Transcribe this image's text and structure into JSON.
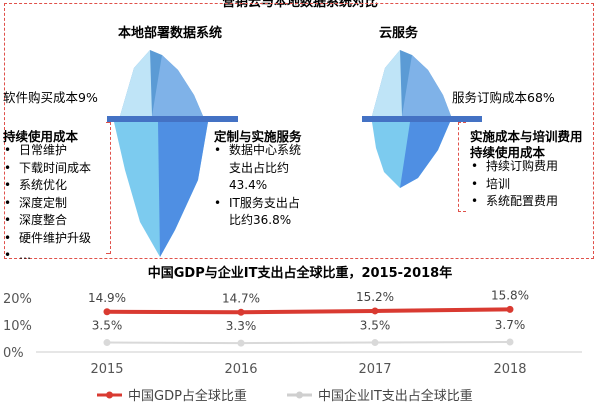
{
  "header": {
    "title": "营销云与本地数据系统对比"
  },
  "local": {
    "title": "本地部署数据系统",
    "above_label": "软件购买成本9%",
    "cost_title": "持续使用成本",
    "cost_items": [
      "日常维护",
      "下载时间成本",
      "系统优化",
      "深度定制",
      "深度整合",
      "硬件维护升级",
      "…"
    ],
    "service_title": "定制与实施服务",
    "service_items": [
      "数据中心系统",
      "支出占比约",
      "43.4%",
      "IT服务支出占",
      "比约36.8%"
    ]
  },
  "cloud": {
    "title": "云服务",
    "above_label": "服务订购成本68%",
    "right_title_1": "实施成本与培训费用",
    "right_title_2": "持续使用成本",
    "right_items": [
      "持续订购费用",
      "培训",
      "系统配置费用"
    ]
  },
  "chart_data": {
    "type": "line",
    "title": "中国GDP与企业IT支出占全球比重，2015-2018年",
    "categories": [
      "2015",
      "2016",
      "2017",
      "2018"
    ],
    "y_ticks": [
      "20%",
      "10%",
      "0%"
    ],
    "ylim": [
      0,
      20
    ],
    "series": [
      {
        "name": "中国GDP占全球比重",
        "values": [
          14.9,
          14.7,
          15.2,
          15.8
        ],
        "labels": [
          "14.9%",
          "14.7%",
          "15.2%",
          "15.8%"
        ],
        "color": "#d93a31"
      },
      {
        "name": "中国企业IT支出占全球比重",
        "values": [
          3.5,
          3.3,
          3.5,
          3.7
        ],
        "labels": [
          "3.5%",
          "3.3%",
          "3.5%",
          "3.7%"
        ],
        "color": "#d9d9d9"
      }
    ],
    "legend": "bottom"
  }
}
